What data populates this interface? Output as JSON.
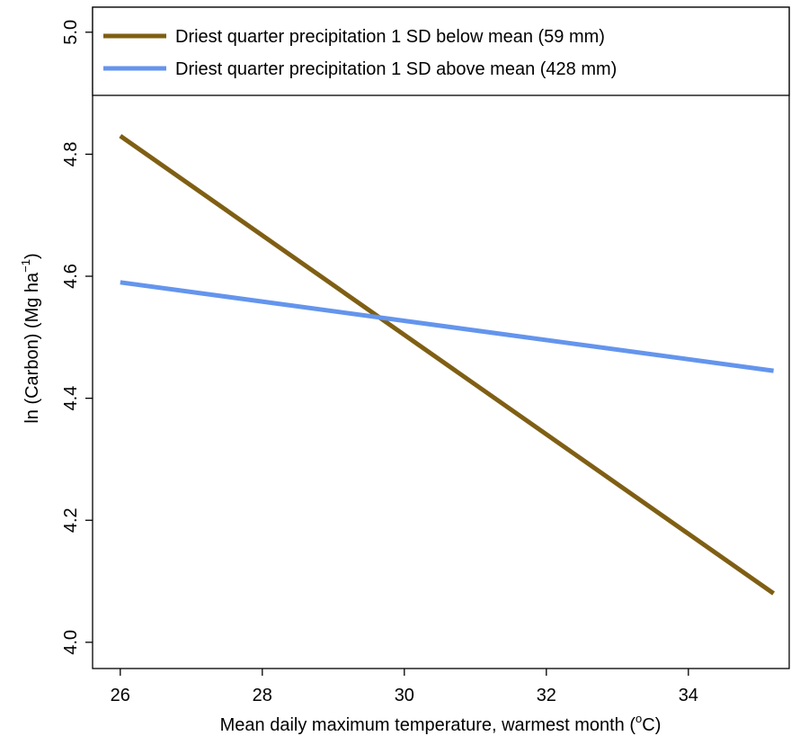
{
  "chart_data": {
    "type": "line",
    "xlabel": [
      "Mean daily maximum temperature, warmest month (",
      "o",
      "C)"
    ],
    "ylabel": [
      "ln (Carbon) (Mg ha",
      "−1",
      ")"
    ],
    "x": [
      26,
      35.2
    ],
    "series": [
      {
        "name": "Driest quarter precipitation 1 SD below mean (59 mm)",
        "color": "#7f5f14",
        "values": [
          4.83,
          4.08
        ]
      },
      {
        "name": "Driest quarter precipitation 1 SD above mean (428 mm)",
        "color": "#6495ed",
        "values": [
          4.59,
          4.445
        ]
      }
    ],
    "xlim": [
      25.61,
      35.42
    ],
    "ylim": [
      3.957,
      5.041
    ],
    "xticks": [
      26,
      28,
      30,
      32,
      34
    ],
    "yticks": [
      {
        "value": 4,
        "label": "4.0"
      },
      4.2,
      4.4,
      4.6,
      4.8,
      {
        "value": 5,
        "label": "5.0"
      }
    ],
    "legend": "top",
    "grid": false
  }
}
